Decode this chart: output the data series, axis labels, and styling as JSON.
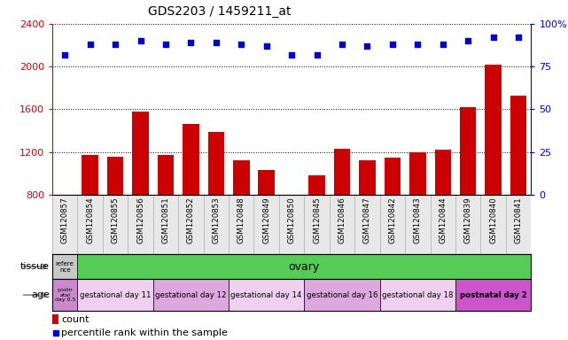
{
  "title": "GDS2203 / 1459211_at",
  "samples": [
    "GSM120857",
    "GSM120854",
    "GSM120855",
    "GSM120856",
    "GSM120851",
    "GSM120852",
    "GSM120853",
    "GSM120848",
    "GSM120849",
    "GSM120850",
    "GSM120845",
    "GSM120846",
    "GSM120847",
    "GSM120842",
    "GSM120843",
    "GSM120844",
    "GSM120839",
    "GSM120840",
    "GSM120841"
  ],
  "counts": [
    800,
    1170,
    1160,
    1580,
    1170,
    1460,
    1390,
    1120,
    1030,
    800,
    980,
    1230,
    1120,
    1150,
    1200,
    1220,
    1620,
    2020,
    1730
  ],
  "percentiles": [
    82,
    88,
    88,
    90,
    88,
    89,
    89,
    88,
    87,
    82,
    82,
    88,
    87,
    88,
    88,
    88,
    90,
    92,
    92
  ],
  "ylim_left": [
    800,
    2400
  ],
  "ylim_right": [
    0,
    100
  ],
  "yticks_left": [
    800,
    1200,
    1600,
    2000,
    2400
  ],
  "yticks_right": [
    0,
    25,
    50,
    75,
    100
  ],
  "bar_color": "#cc0000",
  "dot_color": "#0000cc",
  "tissue_row": {
    "label": "tissue",
    "ref_label": "refere\nnce",
    "ref_color": "#c8c8c8",
    "ovary_label": "ovary",
    "ovary_color": "#55cc55"
  },
  "age_row": {
    "label": "age",
    "ref_label": "postn\natal\nday 0.5",
    "ref_color": "#cc88cc",
    "groups": [
      {
        "label": "gestational day 11",
        "color": "#f0d0f0",
        "count": 3
      },
      {
        "label": "gestational day 12",
        "color": "#dda8dd",
        "count": 3
      },
      {
        "label": "gestational day 14",
        "color": "#f0d0f0",
        "count": 3
      },
      {
        "label": "gestational day 16",
        "color": "#dda8dd",
        "count": 3
      },
      {
        "label": "gestational day 18",
        "color": "#f0d0f0",
        "count": 3
      },
      {
        "label": "postnatal day 2",
        "color": "#cc55cc",
        "count": 3
      }
    ]
  },
  "chart_bg": "#ffffff",
  "fig_bg": "#ffffff",
  "ref_col_count": 1
}
